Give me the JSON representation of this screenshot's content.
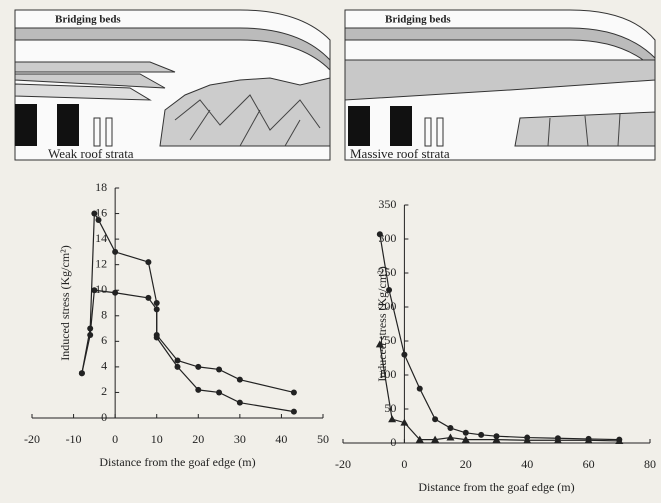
{
  "diagrams": [
    {
      "label": "Bridging beds",
      "caption": "Weak roof strata"
    },
    {
      "label": "Bridging beds",
      "caption": "Massive roof strata"
    }
  ],
  "chart_data": [
    {
      "type": "line",
      "x_label": "Distance from the goaf edge (m)",
      "y_label": "Induced stress (Kg/cm²)",
      "xlim": [
        -20,
        50
      ],
      "xticks": [
        -20,
        -10,
        0,
        10,
        20,
        30,
        40,
        50
      ],
      "ylim": [
        0,
        18
      ],
      "yticks": [
        0,
        2,
        4,
        6,
        8,
        10,
        12,
        14,
        16,
        18
      ],
      "series": [
        {
          "color": "#222",
          "marker": "circle",
          "x": [
            -8,
            -6,
            -5,
            -4,
            0,
            8,
            10,
            10,
            15,
            20,
            25,
            30,
            43
          ],
          "values": [
            3.5,
            7,
            16,
            15.5,
            13,
            12.2,
            9,
            6.5,
            4.5,
            4,
            3.8,
            3,
            2
          ]
        },
        {
          "color": "#222",
          "marker": "circle",
          "x": [
            -8,
            -6,
            -5,
            0,
            8,
            10,
            10,
            15,
            20,
            25,
            30,
            43
          ],
          "values": [
            3.5,
            6.5,
            10,
            9.8,
            9.4,
            8.5,
            6.3,
            4,
            2.2,
            2,
            1.2,
            0.5
          ]
        }
      ]
    },
    {
      "type": "line",
      "x_label": "Distance from the goaf edge (m)",
      "y_label": "Induced stress (Kg/cm²)",
      "xlim": [
        -20,
        80
      ],
      "xticks": [
        -20,
        0,
        20,
        40,
        60,
        80
      ],
      "ylim": [
        0,
        350
      ],
      "yticks": [
        0,
        50,
        100,
        150,
        200,
        250,
        300,
        350
      ],
      "series": [
        {
          "color": "#222",
          "marker": "circle",
          "x": [
            -8,
            -5,
            0,
            5,
            10,
            15,
            20,
            25,
            30,
            40,
            50,
            60,
            70
          ],
          "values": [
            307,
            225,
            130,
            80,
            35,
            22,
            15,
            12,
            10,
            8,
            7,
            6,
            5
          ]
        },
        {
          "color": "#222",
          "marker": "triangle",
          "x": [
            -8,
            -4,
            0,
            5,
            10,
            15,
            20,
            30,
            40,
            50,
            60,
            70
          ],
          "values": [
            145,
            35,
            30,
            5,
            5,
            8,
            5,
            5,
            4,
            4,
            4,
            3
          ]
        }
      ]
    }
  ]
}
